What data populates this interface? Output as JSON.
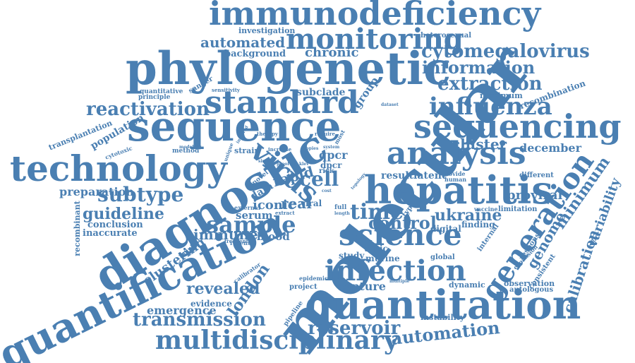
{
  "cloud": {
    "color": "#4a7fb2",
    "words": [
      "immunodeficiency",
      "monitoring",
      "phylogenetic",
      "automated",
      "background",
      "chronic",
      "cytomegalovirus",
      "information",
      "extraction",
      "influenza",
      "sequencing",
      "standard",
      "reactivation",
      "sequence",
      "molecular",
      "technology",
      "diagnostic",
      "analysis",
      "hepatitis",
      "cluster",
      "december",
      "proviral",
      "generation",
      "minimum",
      "variability",
      "calibration",
      "genome",
      "virus",
      "cell",
      "rapid",
      "subtype",
      "guideline",
      "sample",
      "real",
      "iconic",
      "serum",
      "science",
      "control",
      "ukraine",
      "time",
      "result",
      "latent",
      "preparation",
      "quantification",
      "infection",
      "quantitation",
      "revealed",
      "london",
      "immune",
      "blood",
      "clustering",
      "emergence",
      "evidence",
      "transmission",
      "reservoir",
      "multidisciplinary",
      "automation",
      "investigation",
      "heterosexual",
      "subclade",
      "group",
      "maximum",
      "recombination",
      "dataset",
      "quantitative",
      "sanger",
      "sensitivity",
      "principle",
      "population",
      "transplantation",
      "cytotoxic",
      "method",
      "strain",
      "unique",
      "involved",
      "therapy",
      "require",
      "most",
      "increase",
      "system",
      "qpcr",
      "dpcr",
      "risk",
      "klev",
      "proof",
      "copies",
      "similar",
      "novel",
      "viral",
      "data",
      "external",
      "extract",
      "full",
      "length",
      "provide",
      "human",
      "different",
      "vaccine",
      "limitation",
      "digital",
      "finding",
      "topic",
      "study",
      "murine",
      "global",
      "internal",
      "response",
      "expansion",
      "consistent",
      "observation",
      "autologous",
      "dynamic",
      "project",
      "capture",
      "epidemic",
      "multiple",
      "instability",
      "pipeline",
      "recent",
      "frequent",
      "calibrator",
      "clinical",
      "recombinant",
      "conclusion",
      "inaccurate",
      "modeling",
      "cost",
      "type",
      "topology"
    ]
  }
}
